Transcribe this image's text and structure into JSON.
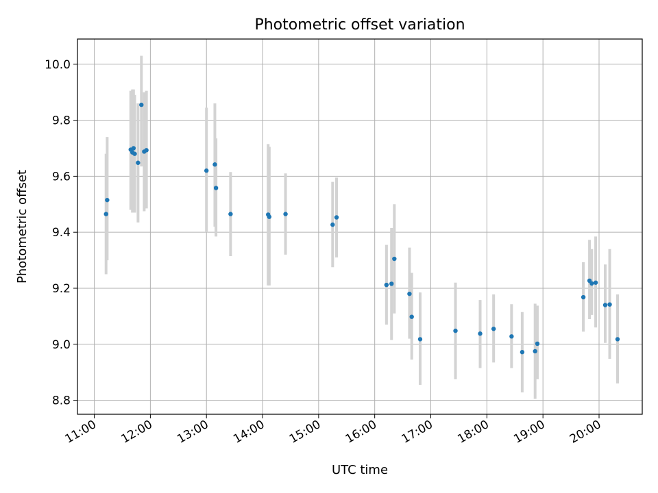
{
  "chart_data": {
    "type": "scatter",
    "title": "Photometric offset variation",
    "xlabel": "UTC time",
    "ylabel": "Photometric offset",
    "x_unit": "hours UTC",
    "xlim": [
      10.7,
      20.77
    ],
    "ylim": [
      8.75,
      10.09
    ],
    "x_ticks": [
      {
        "value": 11,
        "label": "11:00"
      },
      {
        "value": 12,
        "label": "12:00"
      },
      {
        "value": 13,
        "label": "13:00"
      },
      {
        "value": 14,
        "label": "14:00"
      },
      {
        "value": 15,
        "label": "15:00"
      },
      {
        "value": 16,
        "label": "16:00"
      },
      {
        "value": 17,
        "label": "17:00"
      },
      {
        "value": 18,
        "label": "18:00"
      },
      {
        "value": 19,
        "label": "19:00"
      },
      {
        "value": 20,
        "label": "20:00"
      }
    ],
    "y_ticks": [
      {
        "value": 8.8,
        "label": "8.8"
      },
      {
        "value": 9.0,
        "label": "9.0"
      },
      {
        "value": 9.2,
        "label": "9.2"
      },
      {
        "value": 9.4,
        "label": "9.4"
      },
      {
        "value": 9.6,
        "label": "9.6"
      },
      {
        "value": 9.8,
        "label": "9.8"
      },
      {
        "value": 10.0,
        "label": "10.0"
      }
    ],
    "grid": true,
    "colors": {
      "point": "#1f77b4",
      "errorbar": "#d3d3d3",
      "grid": "#b0b0b0"
    },
    "points": [
      {
        "x": 11.21,
        "y": 9.465,
        "lo": 9.25,
        "hi": 9.68
      },
      {
        "x": 11.23,
        "y": 9.515,
        "lo": 9.3,
        "hi": 9.74
      },
      {
        "x": 11.65,
        "y": 9.695,
        "lo": 9.48,
        "hi": 9.905
      },
      {
        "x": 11.68,
        "y": 9.685,
        "lo": 9.47,
        "hi": 9.91
      },
      {
        "x": 11.7,
        "y": 9.7,
        "lo": 9.49,
        "hi": 9.91
      },
      {
        "x": 11.72,
        "y": 9.68,
        "lo": 9.47,
        "hi": 9.89
      },
      {
        "x": 11.78,
        "y": 9.648,
        "lo": 9.435,
        "hi": 9.86
      },
      {
        "x": 11.84,
        "y": 9.855,
        "lo": 9.635,
        "hi": 10.03
      },
      {
        "x": 11.89,
        "y": 9.688,
        "lo": 9.475,
        "hi": 9.9
      },
      {
        "x": 11.93,
        "y": 9.693,
        "lo": 9.485,
        "hi": 9.905
      },
      {
        "x": 13.0,
        "y": 9.62,
        "lo": 9.4,
        "hi": 9.845
      },
      {
        "x": 13.15,
        "y": 9.642,
        "lo": 9.42,
        "hi": 9.86
      },
      {
        "x": 13.17,
        "y": 9.558,
        "lo": 9.385,
        "hi": 9.735
      },
      {
        "x": 13.43,
        "y": 9.465,
        "lo": 9.315,
        "hi": 9.615
      },
      {
        "x": 14.1,
        "y": 9.463,
        "lo": 9.21,
        "hi": 9.715
      },
      {
        "x": 14.12,
        "y": 9.455,
        "lo": 9.21,
        "hi": 9.705
      },
      {
        "x": 14.41,
        "y": 9.465,
        "lo": 9.32,
        "hi": 9.61
      },
      {
        "x": 15.25,
        "y": 9.427,
        "lo": 9.275,
        "hi": 9.58
      },
      {
        "x": 15.32,
        "y": 9.453,
        "lo": 9.31,
        "hi": 9.595
      },
      {
        "x": 16.21,
        "y": 9.212,
        "lo": 9.07,
        "hi": 9.355
      },
      {
        "x": 16.3,
        "y": 9.216,
        "lo": 9.015,
        "hi": 9.415
      },
      {
        "x": 16.35,
        "y": 9.305,
        "lo": 9.11,
        "hi": 9.5
      },
      {
        "x": 16.62,
        "y": 9.18,
        "lo": 9.02,
        "hi": 9.345
      },
      {
        "x": 16.66,
        "y": 9.098,
        "lo": 8.945,
        "hi": 9.255
      },
      {
        "x": 16.81,
        "y": 9.018,
        "lo": 8.855,
        "hi": 9.185
      },
      {
        "x": 17.44,
        "y": 9.048,
        "lo": 8.875,
        "hi": 9.22
      },
      {
        "x": 17.88,
        "y": 9.038,
        "lo": 8.915,
        "hi": 9.158
      },
      {
        "x": 18.12,
        "y": 9.055,
        "lo": 8.935,
        "hi": 9.178
      },
      {
        "x": 18.44,
        "y": 9.028,
        "lo": 8.915,
        "hi": 9.143
      },
      {
        "x": 18.63,
        "y": 8.972,
        "lo": 8.828,
        "hi": 9.115
      },
      {
        "x": 18.86,
        "y": 8.975,
        "lo": 8.805,
        "hi": 9.145
      },
      {
        "x": 18.9,
        "y": 9.002,
        "lo": 8.875,
        "hi": 9.138
      },
      {
        "x": 19.72,
        "y": 9.168,
        "lo": 9.045,
        "hi": 9.293
      },
      {
        "x": 19.83,
        "y": 9.227,
        "lo": 9.09,
        "hi": 9.373
      },
      {
        "x": 19.87,
        "y": 9.217,
        "lo": 9.105,
        "hi": 9.34
      },
      {
        "x": 19.94,
        "y": 9.22,
        "lo": 9.06,
        "hi": 9.385
      },
      {
        "x": 20.11,
        "y": 9.14,
        "lo": 9.005,
        "hi": 9.285
      },
      {
        "x": 20.19,
        "y": 9.142,
        "lo": 8.948,
        "hi": 9.34
      },
      {
        "x": 20.33,
        "y": 9.018,
        "lo": 8.86,
        "hi": 9.178
      }
    ]
  }
}
